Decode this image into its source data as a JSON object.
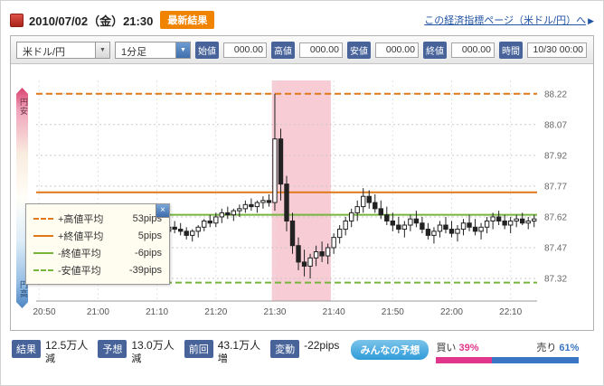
{
  "header": {
    "date": "2010/07/02（金）21:30",
    "badge": "最新結果",
    "link_text": "この経済指標ページ（米ドル/円）へ"
  },
  "icons": {
    "link_arrow": "▶",
    "select_arrow": "▼",
    "close": "×"
  },
  "toolbar": {
    "pair_select": "米ドル/円",
    "interval_select": "1分足",
    "fields": [
      {
        "label": "始値",
        "value": "000.00"
      },
      {
        "label": "高値",
        "value": "000.00"
      },
      {
        "label": "安値",
        "value": "000.00"
      },
      {
        "label": "終値",
        "value": "000.00"
      },
      {
        "label": "時間",
        "value": "10/30 00:00"
      }
    ]
  },
  "chart_data": {
    "type": "candlestick",
    "pair": "米ドル/円",
    "interval": "1分足",
    "start_time": "20:50",
    "interval_minutes": 1,
    "x_tick_labels": [
      "20:50",
      "21:00",
      "21:10",
      "21:20",
      "21:30",
      "21:40",
      "21:50",
      "22:00",
      "22:10"
    ],
    "x_tick_indices": [
      0,
      10,
      20,
      30,
      40,
      50,
      60,
      70,
      80
    ],
    "y_ticks": [
      88.22,
      88.07,
      87.92,
      87.77,
      87.62,
      87.47,
      87.32
    ],
    "ylim": [
      87.21,
      88.285
    ],
    "axis_left_label_top": "円安",
    "axis_left_label_bottom": "円高",
    "highlight_band": {
      "start_index": 40,
      "end_index": 50,
      "color": "#f7ccd5"
    },
    "candle_up_color": "#ffffff",
    "candle_down_color": "#222222",
    "avg_lines": [
      {
        "name": "+高値平均",
        "pips": "53pips",
        "value": 88.22,
        "style": "dashed",
        "color": "#e07818"
      },
      {
        "name": "+終値平均",
        "pips": "5pips",
        "value": 87.74,
        "style": "solid",
        "color": "#e07818"
      },
      {
        "name": "-終値平均",
        "pips": "-6pips",
        "value": 87.63,
        "style": "solid",
        "color": "#76b43c"
      },
      {
        "name": "-安値平均",
        "pips": "-39pips",
        "value": 87.3,
        "style": "dashed",
        "color": "#76b43c"
      }
    ],
    "ohlc": [
      [
        87.46,
        87.49,
        87.44,
        87.48
      ],
      [
        87.48,
        87.51,
        87.46,
        87.5
      ],
      [
        87.5,
        87.52,
        87.47,
        87.48
      ],
      [
        87.48,
        87.5,
        87.45,
        87.47
      ],
      [
        87.47,
        87.52,
        87.46,
        87.51
      ],
      [
        87.51,
        87.54,
        87.49,
        87.53
      ],
      [
        87.53,
        87.56,
        87.51,
        87.52
      ],
      [
        87.52,
        87.55,
        87.5,
        87.54
      ],
      [
        87.54,
        87.58,
        87.52,
        87.56
      ],
      [
        87.56,
        87.6,
        87.54,
        87.58
      ],
      [
        87.58,
        87.62,
        87.55,
        87.57
      ],
      [
        87.57,
        87.6,
        87.54,
        87.56
      ],
      [
        87.56,
        87.59,
        87.53,
        87.55
      ],
      [
        87.55,
        87.58,
        87.52,
        87.57
      ],
      [
        87.57,
        87.61,
        87.55,
        87.6
      ],
      [
        87.6,
        87.63,
        87.57,
        87.59
      ],
      [
        87.59,
        87.62,
        87.56,
        87.58
      ],
      [
        87.58,
        87.6,
        87.54,
        87.56
      ],
      [
        87.56,
        87.59,
        87.53,
        87.55
      ],
      [
        87.55,
        87.58,
        87.52,
        87.54
      ],
      [
        87.54,
        87.57,
        87.51,
        87.56
      ],
      [
        87.56,
        87.59,
        87.53,
        87.55
      ],
      [
        87.55,
        87.58,
        87.52,
        87.57
      ],
      [
        87.57,
        87.6,
        87.54,
        87.56
      ],
      [
        87.56,
        87.59,
        87.53,
        87.55
      ],
      [
        87.55,
        87.57,
        87.51,
        87.53
      ],
      [
        87.53,
        87.56,
        87.5,
        87.55
      ],
      [
        87.55,
        87.58,
        87.52,
        87.57
      ],
      [
        87.57,
        87.61,
        87.55,
        87.6
      ],
      [
        87.6,
        87.63,
        87.57,
        87.59
      ],
      [
        87.59,
        87.64,
        87.57,
        87.62
      ],
      [
        87.62,
        87.66,
        87.59,
        87.64
      ],
      [
        87.64,
        87.67,
        87.61,
        87.63
      ],
      [
        87.63,
        87.66,
        87.6,
        87.65
      ],
      [
        87.65,
        87.68,
        87.62,
        87.66
      ],
      [
        87.66,
        87.7,
        87.64,
        87.68
      ],
      [
        87.68,
        87.71,
        87.65,
        87.67
      ],
      [
        87.67,
        87.7,
        87.64,
        87.69
      ],
      [
        87.69,
        87.72,
        87.66,
        87.7
      ],
      [
        87.7,
        87.73,
        87.67,
        87.69
      ],
      [
        87.69,
        88.22,
        87.65,
        88.0
      ],
      [
        88.0,
        88.05,
        87.7,
        87.78
      ],
      [
        87.78,
        87.82,
        87.55,
        87.6
      ],
      [
        87.6,
        87.64,
        87.44,
        87.48
      ],
      [
        87.48,
        87.52,
        87.36,
        87.4
      ],
      [
        87.4,
        87.46,
        87.33,
        87.38
      ],
      [
        87.38,
        87.44,
        87.32,
        87.42
      ],
      [
        87.42,
        87.48,
        87.38,
        87.45
      ],
      [
        87.45,
        87.5,
        87.4,
        87.43
      ],
      [
        87.43,
        87.49,
        87.39,
        87.47
      ],
      [
        87.47,
        87.54,
        87.44,
        87.52
      ],
      [
        87.52,
        87.58,
        87.49,
        87.56
      ],
      [
        87.56,
        87.62,
        87.53,
        87.6
      ],
      [
        87.6,
        87.66,
        87.57,
        87.64
      ],
      [
        87.64,
        87.7,
        87.6,
        87.67
      ],
      [
        87.67,
        87.76,
        87.64,
        87.72
      ],
      [
        87.72,
        87.75,
        87.66,
        87.69
      ],
      [
        87.69,
        87.73,
        87.64,
        87.66
      ],
      [
        87.66,
        87.7,
        87.61,
        87.63
      ],
      [
        87.63,
        87.67,
        87.58,
        87.6
      ],
      [
        87.6,
        87.64,
        87.55,
        87.58
      ],
      [
        87.58,
        87.62,
        87.54,
        87.56
      ],
      [
        87.56,
        87.6,
        87.52,
        87.58
      ],
      [
        87.58,
        87.63,
        87.55,
        87.61
      ],
      [
        87.61,
        87.65,
        87.57,
        87.59
      ],
      [
        87.59,
        87.62,
        87.54,
        87.56
      ],
      [
        87.56,
        87.59,
        87.51,
        87.53
      ],
      [
        87.53,
        87.57,
        87.49,
        87.55
      ],
      [
        87.55,
        87.6,
        87.52,
        87.58
      ],
      [
        87.58,
        87.62,
        87.54,
        87.56
      ],
      [
        87.56,
        87.6,
        87.52,
        87.54
      ],
      [
        87.54,
        87.58,
        87.5,
        87.56
      ],
      [
        87.56,
        87.61,
        87.53,
        87.59
      ],
      [
        87.59,
        87.63,
        87.55,
        87.57
      ],
      [
        87.57,
        87.61,
        87.53,
        87.55
      ],
      [
        87.55,
        87.59,
        87.51,
        87.57
      ],
      [
        87.57,
        87.62,
        87.54,
        87.6
      ],
      [
        87.6,
        87.64,
        87.56,
        87.62
      ],
      [
        87.62,
        87.65,
        87.58,
        87.6
      ],
      [
        87.6,
        87.63,
        87.56,
        87.58
      ],
      [
        87.58,
        87.62,
        87.54,
        87.6
      ],
      [
        87.6,
        87.63,
        87.57,
        87.61
      ],
      [
        87.61,
        87.64,
        87.58,
        87.59
      ],
      [
        87.59,
        87.62,
        87.56,
        87.6
      ],
      [
        87.6,
        87.63,
        87.57,
        87.61
      ]
    ]
  },
  "stats": {
    "items": [
      {
        "label": "結果",
        "value": "12.5万人",
        "direction": "減"
      },
      {
        "label": "予想",
        "value": "13.0万人",
        "direction": "減"
      },
      {
        "label": "前回",
        "value": "43.1万人",
        "direction": "増"
      },
      {
        "label": "変動",
        "value": "-22pips",
        "direction": ""
      }
    ],
    "forecast_badge": "みんなの予想",
    "buy_label": "買い",
    "buy_pct": "39%",
    "sell_label": "売り",
    "sell_pct": "61%",
    "buy_ratio": 39,
    "sell_ratio": 61,
    "buy_color": "#e0368c",
    "sell_color": "#3a76c4"
  }
}
